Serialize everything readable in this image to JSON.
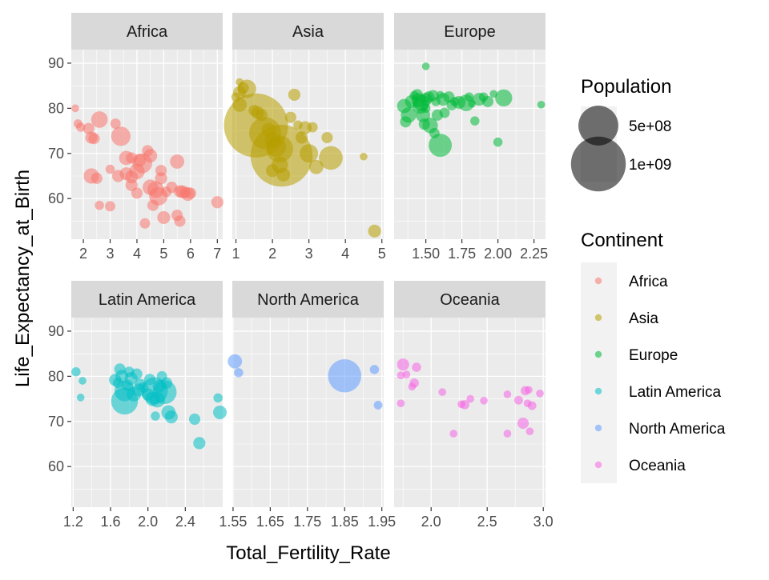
{
  "chart_data": {
    "type": "scatter",
    "xlabel": "Total_Fertility_Rate",
    "ylabel": "Life_Expectancy_at_Birth",
    "ylim": [
      51,
      93
    ],
    "y_ticks": [
      60,
      70,
      80,
      90
    ],
    "grid": true,
    "legend_position": "right",
    "size_legend": {
      "title": "Population",
      "entries": [
        {
          "label": "5e+08",
          "value": 500000000
        },
        {
          "label": "1e+09",
          "value": 1000000000
        }
      ]
    },
    "color_legend": {
      "title": "Continent",
      "entries": [
        {
          "label": "Africa",
          "color": "#F8766D"
        },
        {
          "label": "Asia",
          "color": "#B79F00"
        },
        {
          "label": "Europe",
          "color": "#00BA38"
        },
        {
          "label": "Latin America",
          "color": "#00BFC4"
        },
        {
          "label": "North America",
          "color": "#619CFF"
        },
        {
          "label": "Oceania",
          "color": "#F564E3"
        }
      ]
    },
    "facets": [
      {
        "name": "Africa",
        "color": "#F8766D",
        "xlim": [
          1.55,
          7.2
        ],
        "x_ticks": [
          2,
          3,
          4,
          5,
          6,
          7
        ],
        "x_tick_labels": [
          "2",
          "3",
          "4",
          "5",
          "6",
          "7"
        ],
        "points": [
          [
            1.7,
            80.0,
            5
          ],
          [
            1.8,
            76.6,
            8
          ],
          [
            1.9,
            75.8,
            10
          ],
          [
            2.2,
            75.5,
            20
          ],
          [
            2.3,
            73.5,
            25
          ],
          [
            2.4,
            73.3,
            20
          ],
          [
            2.6,
            77.5,
            60
          ],
          [
            2.3,
            65.0,
            50
          ],
          [
            2.5,
            64.5,
            20
          ],
          [
            2.6,
            58.5,
            10
          ],
          [
            3.0,
            66.5,
            10
          ],
          [
            3.0,
            58.3,
            15
          ],
          [
            3.2,
            76.6,
            15
          ],
          [
            3.3,
            65.0,
            25
          ],
          [
            3.4,
            73.8,
            90
          ],
          [
            3.6,
            69.0,
            40
          ],
          [
            3.6,
            65.5,
            30
          ],
          [
            3.8,
            69.0,
            20
          ],
          [
            3.8,
            64.8,
            30
          ],
          [
            3.8,
            63.0,
            25
          ],
          [
            4.0,
            66.0,
            50
          ],
          [
            4.0,
            61.2,
            20
          ],
          [
            4.1,
            68.5,
            30
          ],
          [
            4.2,
            67.8,
            95
          ],
          [
            4.4,
            70.6,
            20
          ],
          [
            4.5,
            69.5,
            35
          ],
          [
            4.5,
            62.5,
            50
          ],
          [
            4.3,
            54.5,
            15
          ],
          [
            4.6,
            58.5,
            20
          ],
          [
            4.7,
            62.0,
            60
          ],
          [
            4.8,
            60.5,
            80
          ],
          [
            4.9,
            66.2,
            20
          ],
          [
            4.9,
            64.5,
            25
          ],
          [
            5.0,
            55.8,
            30
          ],
          [
            5.1,
            61.5,
            15
          ],
          [
            5.3,
            62.5,
            20
          ],
          [
            5.5,
            68.2,
            40
          ],
          [
            5.5,
            56.3,
            20
          ],
          [
            5.6,
            61.6,
            25
          ],
          [
            5.6,
            55.0,
            20
          ],
          [
            5.7,
            61.5,
            30
          ],
          [
            5.8,
            61.3,
            20
          ],
          [
            5.9,
            61.0,
            35
          ],
          [
            6.0,
            61.2,
            20
          ],
          [
            7.0,
            59.2,
            25
          ]
        ]
      },
      {
        "name": "Asia",
        "color": "#B79F00",
        "xlim": [
          0.9,
          5.05
        ],
        "x_ticks": [
          1,
          2,
          3,
          4,
          5
        ],
        "x_tick_labels": [
          "1",
          "2",
          "3",
          "4",
          "5"
        ],
        "points": [
          [
            1.1,
            85.8,
            5
          ],
          [
            1.1,
            83.5,
            30
          ],
          [
            1.2,
            84.5,
            20
          ],
          [
            1.3,
            84.3,
            80
          ],
          [
            1.0,
            82.5,
            10
          ],
          [
            1.1,
            80.8,
            40
          ],
          [
            1.5,
            79.5,
            20
          ],
          [
            1.6,
            79.0,
            30
          ],
          [
            1.7,
            78.5,
            25
          ],
          [
            1.55,
            76.2,
            1400
          ],
          [
            1.8,
            74.5,
            300
          ],
          [
            1.9,
            75.2,
            40
          ],
          [
            2.0,
            73.0,
            50
          ],
          [
            2.1,
            71.5,
            100
          ],
          [
            2.25,
            69.5,
            1300
          ],
          [
            2.2,
            67.5,
            60
          ],
          [
            2.0,
            66.2,
            30
          ],
          [
            2.3,
            65.3,
            35
          ],
          [
            2.2,
            71.0,
            200
          ],
          [
            2.5,
            78.0,
            20
          ],
          [
            2.6,
            83.0,
            25
          ],
          [
            2.7,
            76.3,
            10
          ],
          [
            2.8,
            73.5,
            25
          ],
          [
            2.9,
            75.7,
            30
          ],
          [
            3.0,
            70.0,
            80
          ],
          [
            3.1,
            75.8,
            15
          ],
          [
            3.2,
            67.0,
            40
          ],
          [
            3.5,
            73.5,
            20
          ],
          [
            3.6,
            69.0,
            150
          ],
          [
            4.5,
            69.3,
            5
          ],
          [
            4.8,
            52.8,
            30
          ]
        ]
      },
      {
        "name": "Europe",
        "color": "#00BA38",
        "xlim": [
          1.28,
          2.33
        ],
        "x_ticks": [
          1.5,
          1.75,
          2.0,
          2.25
        ],
        "x_tick_labels": [
          "1.50",
          "1.75",
          "2.00",
          "2.25"
        ],
        "points": [
          [
            1.5,
            89.3,
            5
          ],
          [
            1.35,
            80.5,
            40
          ],
          [
            1.38,
            78.5,
            50
          ],
          [
            1.36,
            77.0,
            20
          ],
          [
            1.4,
            81.5,
            30
          ],
          [
            1.42,
            82.8,
            10
          ],
          [
            1.44,
            83.0,
            20
          ],
          [
            1.45,
            81.8,
            40
          ],
          [
            1.46,
            80.5,
            50
          ],
          [
            1.47,
            81.2,
            60
          ],
          [
            1.48,
            78.5,
            40
          ],
          [
            1.49,
            76.5,
            20
          ],
          [
            1.5,
            82.0,
            30
          ],
          [
            1.5,
            80.0,
            10
          ],
          [
            1.52,
            82.5,
            20
          ],
          [
            1.53,
            76.2,
            50
          ],
          [
            1.55,
            82.8,
            20
          ],
          [
            1.56,
            74.5,
            15
          ],
          [
            1.57,
            81.5,
            10
          ],
          [
            1.58,
            78.5,
            20
          ],
          [
            1.6,
            83.0,
            5
          ],
          [
            1.6,
            71.8,
            140
          ],
          [
            1.62,
            82.0,
            30
          ],
          [
            1.63,
            79.0,
            15
          ],
          [
            1.66,
            82.5,
            20
          ],
          [
            1.68,
            80.7,
            15
          ],
          [
            1.7,
            81.5,
            10
          ],
          [
            1.73,
            81.3,
            30
          ],
          [
            1.78,
            81.2,
            60
          ],
          [
            1.8,
            82.5,
            10
          ],
          [
            1.82,
            81.0,
            5
          ],
          [
            1.84,
            77.2,
            10
          ],
          [
            1.87,
            82.0,
            30
          ],
          [
            1.9,
            82.5,
            10
          ],
          [
            1.93,
            81.5,
            20
          ],
          [
            1.97,
            83.2,
            5
          ],
          [
            2.0,
            72.5,
            10
          ],
          [
            2.04,
            82.3,
            65
          ],
          [
            2.3,
            80.8,
            5
          ]
        ]
      },
      {
        "name": "Latin America",
        "color": "#00BFC4",
        "xlim": [
          1.18,
          2.8
        ],
        "x_ticks": [
          1.2,
          1.6,
          2.0,
          2.4
        ],
        "x_tick_labels": [
          "1.2",
          "1.6",
          "2.0",
          "2.4"
        ],
        "points": [
          [
            1.23,
            81.0,
            10
          ],
          [
            1.3,
            79.0,
            5
          ],
          [
            1.28,
            75.3,
            5
          ],
          [
            1.65,
            79.2,
            25
          ],
          [
            1.68,
            78.5,
            15
          ],
          [
            1.7,
            81.6,
            20
          ],
          [
            1.72,
            80.0,
            30
          ],
          [
            1.75,
            76.7,
            100
          ],
          [
            1.75,
            74.5,
            200
          ],
          [
            1.78,
            78.0,
            20
          ],
          [
            1.8,
            81.0,
            15
          ],
          [
            1.82,
            79.5,
            30
          ],
          [
            1.85,
            76.0,
            40
          ],
          [
            1.88,
            80.5,
            20
          ],
          [
            1.9,
            77.0,
            30
          ],
          [
            1.92,
            78.2,
            20
          ],
          [
            1.95,
            77.5,
            15
          ],
          [
            2.0,
            76.0,
            25
          ],
          [
            2.02,
            79.3,
            20
          ],
          [
            2.05,
            75.0,
            40
          ],
          [
            2.07,
            76.8,
            200
          ],
          [
            2.08,
            71.2,
            10
          ],
          [
            2.1,
            74.8,
            50
          ],
          [
            2.12,
            77.8,
            30
          ],
          [
            2.15,
            80.0,
            15
          ],
          [
            2.18,
            76.5,
            150
          ],
          [
            2.2,
            78.5,
            20
          ],
          [
            2.22,
            72.0,
            40
          ],
          [
            2.25,
            71.0,
            30
          ],
          [
            2.5,
            70.5,
            20
          ],
          [
            2.55,
            65.2,
            25
          ],
          [
            2.75,
            75.2,
            10
          ],
          [
            2.77,
            72.0,
            35
          ]
        ]
      },
      {
        "name": "North America",
        "color": "#619CFF",
        "xlim": [
          1.548,
          1.955
        ],
        "x_ticks": [
          1.55,
          1.65,
          1.75,
          1.85,
          1.95
        ],
        "x_tick_labels": [
          "1.55",
          "1.65",
          "1.75",
          "1.85",
          "1.95"
        ],
        "points": [
          [
            1.555,
            83.3,
            40
          ],
          [
            1.565,
            80.8,
            10
          ],
          [
            1.85,
            80.1,
            330
          ],
          [
            1.93,
            81.5,
            10
          ],
          [
            1.94,
            73.6,
            8
          ]
        ]
      },
      {
        "name": "Oceania",
        "color": "#F564E3",
        "xlim": [
          1.67,
          3.02
        ],
        "x_ticks": [
          2.0,
          2.5,
          3.0
        ],
        "x_tick_labels": [
          "2.0",
          "2.5",
          "3.0"
        ],
        "points": [
          [
            1.73,
            74.0,
            5
          ],
          [
            1.73,
            80.2,
            5
          ],
          [
            1.75,
            82.6,
            25
          ],
          [
            1.78,
            80.4,
            5
          ],
          [
            1.83,
            77.7,
            5
          ],
          [
            1.85,
            78.5,
            10
          ],
          [
            1.87,
            82.0,
            10
          ],
          [
            2.1,
            76.5,
            5
          ],
          [
            2.2,
            67.3,
            5
          ],
          [
            2.27,
            73.8,
            5
          ],
          [
            2.3,
            73.7,
            10
          ],
          [
            2.35,
            75.0,
            5
          ],
          [
            2.47,
            74.6,
            5
          ],
          [
            2.68,
            76.0,
            5
          ],
          [
            2.68,
            67.3,
            5
          ],
          [
            2.78,
            74.7,
            8
          ],
          [
            2.82,
            69.6,
            20
          ],
          [
            2.84,
            76.8,
            10
          ],
          [
            2.86,
            74.0,
            5
          ],
          [
            2.87,
            77.0,
            5
          ],
          [
            2.88,
            67.8,
            5
          ],
          [
            2.9,
            73.5,
            8
          ],
          [
            2.97,
            76.2,
            5
          ]
        ]
      }
    ]
  }
}
